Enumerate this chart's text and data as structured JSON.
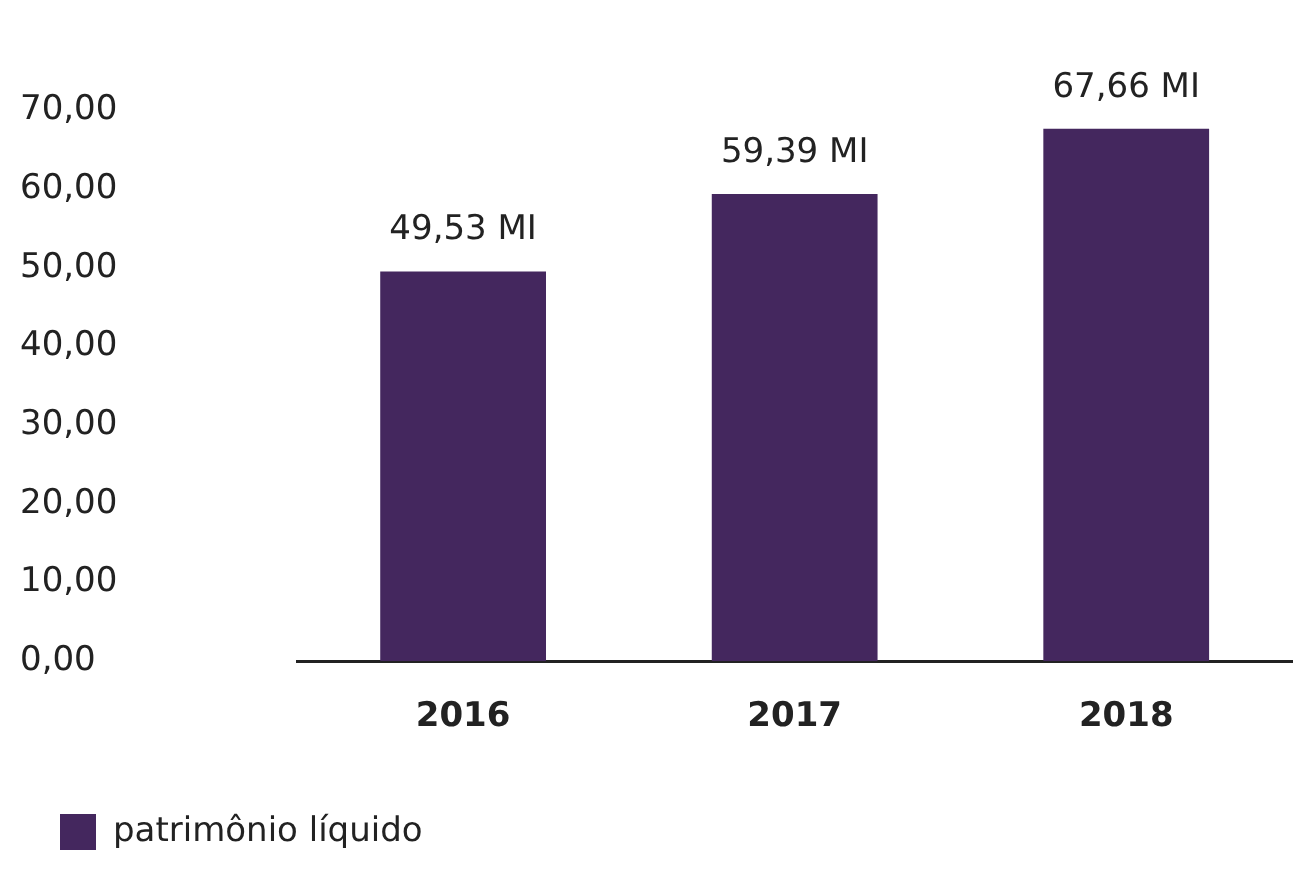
{
  "chart_data": {
    "type": "bar",
    "categories": [
      "2016",
      "2017",
      "2018"
    ],
    "series": [
      {
        "name": "patrimônio líquido",
        "color": "#44275e",
        "values": [
          49.53,
          59.39,
          67.66
        ],
        "value_labels": [
          "49,53 MI",
          "59,39 MI",
          "67,66 MI"
        ]
      }
    ],
    "ylim": [
      0,
      70
    ],
    "yticks": [
      {
        "value": 0,
        "label": "0,00"
      },
      {
        "value": 10,
        "label": "10,00"
      },
      {
        "value": 20,
        "label": "20,00"
      },
      {
        "value": 30,
        "label": "30,00"
      },
      {
        "value": 40,
        "label": "40,00"
      },
      {
        "value": 50,
        "label": "50,00"
      },
      {
        "value": 60,
        "label": "60,00"
      },
      {
        "value": 70,
        "label": "70,00"
      }
    ],
    "grid": false,
    "legend": "bottom"
  }
}
